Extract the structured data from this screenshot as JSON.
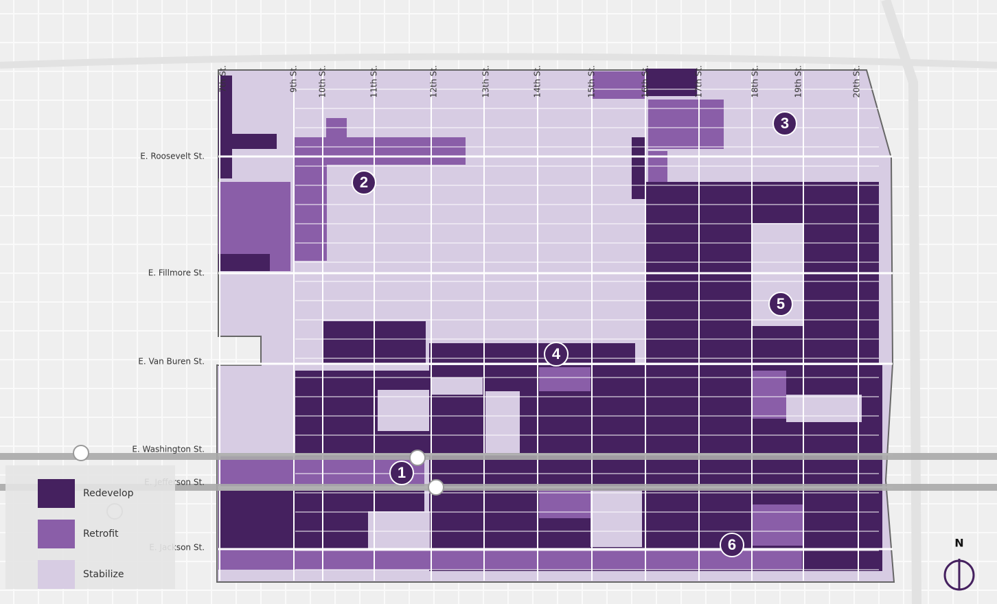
{
  "streets_ns": [
    "7th St.",
    "9th St.",
    "10th St.",
    "11th St.",
    "12th St.",
    "13th St.",
    "14th St.",
    "15th St.",
    "16th St.",
    "17th St.",
    "18th St.",
    "19th St.",
    "20th St."
  ],
  "streets_ew": [
    "E. Roosevelt St.",
    "E. Fillmore St.",
    "E. Van Buren St.",
    "E. Washington St.",
    "E. Jefferson St.",
    "E. Jackson St."
  ],
  "markers": [
    "1",
    "2",
    "3",
    "4",
    "5",
    "6"
  ],
  "legend": [
    {
      "label": "Redevelop",
      "color": "#45215f"
    },
    {
      "label": "Retrofit",
      "color": "#8a5ea8"
    },
    {
      "label": "Stabilize",
      "color": "#d7cce3"
    }
  ],
  "north": "N"
}
